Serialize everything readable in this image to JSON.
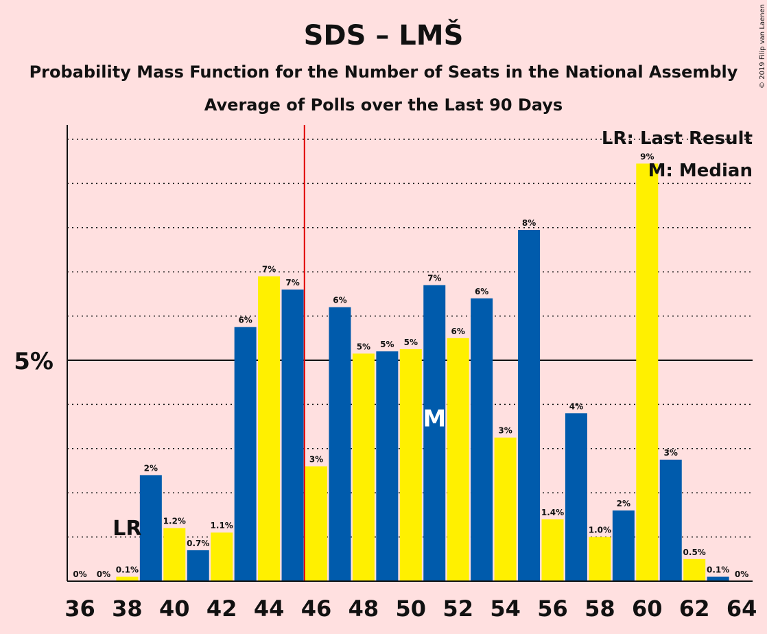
{
  "chart_data": {
    "type": "bar",
    "title": "SDS – LMŠ",
    "subtitle": "Probability Mass Function for the Number of Seats in the National Assembly",
    "subtitle2": "Average of Polls over the Last 90 Days",
    "copyright": "© 2019 Filip van Laenen",
    "x": [
      36,
      37,
      38,
      39,
      40,
      41,
      42,
      43,
      44,
      45,
      46,
      47,
      48,
      49,
      50,
      51,
      52,
      53,
      54,
      55,
      56,
      57,
      58,
      59,
      60,
      61,
      62,
      63,
      64
    ],
    "values": [
      0,
      0,
      0.1,
      2.4,
      1.2,
      0.7,
      1.1,
      5.75,
      6.9,
      6.6,
      2.6,
      6.2,
      5.15,
      5.2,
      5.25,
      6.7,
      5.5,
      6.4,
      3.25,
      7.95,
      1.4,
      3.8,
      1.0,
      1.6,
      9.45,
      2.75,
      0.5,
      0.1,
      0
    ],
    "labels": [
      "0%",
      "0%",
      "0.1%",
      "2%",
      "1.2%",
      "0.7%",
      "1.1%",
      "6%",
      "7%",
      "7%",
      "3%",
      "6%",
      "5%",
      "5%",
      "5%",
      "7%",
      "6%",
      "6%",
      "3%",
      "8%",
      "1.4%",
      "4%",
      "1.0%",
      "2%",
      "9%",
      "3%",
      "0.5%",
      "0.1%",
      "0%"
    ],
    "xticks": [
      36,
      38,
      40,
      42,
      44,
      46,
      48,
      50,
      52,
      54,
      56,
      58,
      60,
      62,
      64
    ],
    "ytick_label": "5%",
    "ytick_value": 5,
    "ylim": [
      0,
      10.3
    ],
    "gridlines_every": 1,
    "majority_line_x": 45.5,
    "colors": {
      "even": "#FFF000",
      "odd": "#005BAC",
      "majority": "#E00000",
      "background": "#FFE0E0"
    },
    "last_result": {
      "x": 38,
      "label": "LR"
    },
    "median": {
      "x": 51,
      "label": "M"
    },
    "legend": [
      "LR: Last Result",
      "M: Median"
    ],
    "legend_position": "top-right"
  }
}
